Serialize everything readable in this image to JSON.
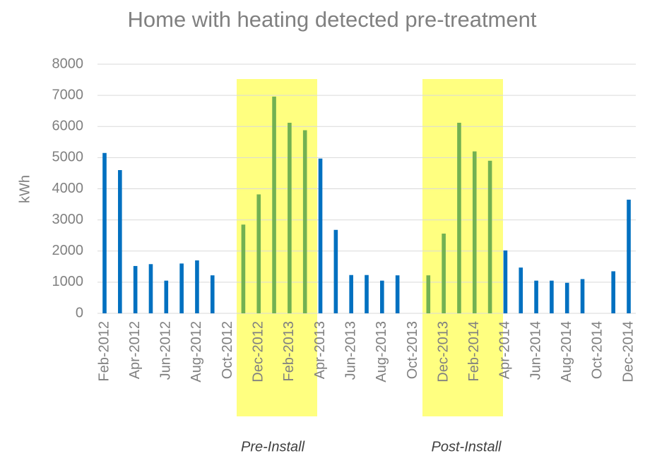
{
  "chart_data": {
    "type": "bar",
    "title": "Home with heating detected pre-treatment",
    "y_label": "kWh",
    "categories": [
      "Feb-2012",
      null,
      "Apr-2012",
      null,
      "Jun-2012",
      null,
      "Aug-2012",
      null,
      "Oct-2012",
      null,
      "Dec-2012",
      null,
      "Feb-2013",
      null,
      "Apr-2013",
      null,
      "Jun-2013",
      null,
      "Aug-2013",
      null,
      "Oct-2013",
      null,
      "Dec-2013",
      null,
      "Feb-2014",
      null,
      "Apr-2014",
      null,
      "Jun-2014",
      null,
      "Aug-2014",
      null,
      "Oct-2014",
      null,
      "Dec-2014"
    ],
    "values": [
      5150,
      4600,
      1520,
      1580,
      1050,
      1600,
      1700,
      1220,
      null,
      2850,
      3820,
      6960,
      6120,
      5880,
      4970,
      2680,
      1230,
      1230,
      1050,
      1220,
      null,
      1220,
      2560,
      6120,
      5200,
      4900,
      2020,
      1470,
      1050,
      1050,
      980,
      1100,
      null,
      1350,
      3650
    ],
    "colors": [
      "#0070c0",
      "#0070c0",
      "#0070c0",
      "#0070c0",
      "#0070c0",
      "#0070c0",
      "#0070c0",
      "#0070c0",
      "#0070c0",
      "#72b152",
      "#72b152",
      "#72b152",
      "#72b152",
      "#72b152",
      "#0070c0",
      "#0070c0",
      "#0070c0",
      "#0070c0",
      "#0070c0",
      "#0070c0",
      "#0070c0",
      "#72b152",
      "#72b152",
      "#72b152",
      "#72b152",
      "#72b152",
      "#0070c0",
      "#0070c0",
      "#0070c0",
      "#0070c0",
      "#0070c0",
      "#0070c0",
      "#0070c0",
      "#0070c0",
      "#0070c0"
    ],
    "annotations": [
      "Pre-Install",
      "Post-Install"
    ],
    "ylim": [
      0,
      8000
    ],
    "yticks": [
      0,
      1000,
      2000,
      3000,
      4000,
      5000,
      6000,
      7000,
      8000
    ],
    "grid": true
  }
}
